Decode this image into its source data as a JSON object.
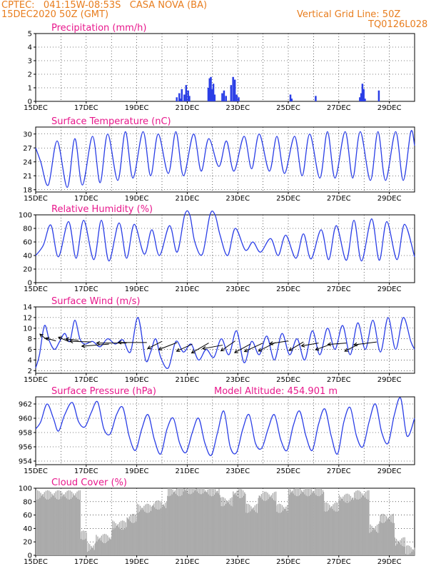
{
  "header": {
    "line1": "CPTEC:   041:15W-08:53S   CASA NOVA (BA)",
    "line2": "15DEC2020 50Z (GMT)",
    "right1": "Vertical Grid Line: 50Z",
    "right2": "TQ0126L028"
  },
  "colors": {
    "series": "#2a3ee6",
    "cloud": "#ababab",
    "title": "#e8188c",
    "header": "#e87d1e"
  },
  "chart_data": [
    {
      "type": "bar",
      "title": "Precipitation (mm/h)",
      "x_ticks": [
        "15DEC",
        "17DEC",
        "19DEC",
        "21DEC",
        "23DEC",
        "25DEC",
        "27DEC",
        "29DEC"
      ],
      "ylim": [
        0,
        5
      ],
      "yticks": [
        0,
        1,
        2,
        3,
        4,
        5
      ],
      "series": [
        {
          "values_by_day": [
            {
              "day": 20.55,
              "v": 0.3
            },
            {
              "day": 20.65,
              "v": 0.6
            },
            {
              "day": 20.75,
              "v": 0.9
            },
            {
              "day": 20.85,
              "v": 0.5
            },
            {
              "day": 20.92,
              "v": 1.2
            },
            {
              "day": 21.0,
              "v": 0.8
            },
            {
              "day": 20.7,
              "v": 0.2
            },
            {
              "day": 21.05,
              "v": 0.4
            },
            {
              "day": 21.8,
              "v": 1.0
            },
            {
              "day": 21.85,
              "v": 1.7
            },
            {
              "day": 21.9,
              "v": 1.8
            },
            {
              "day": 21.95,
              "v": 0.9
            },
            {
              "day": 22.0,
              "v": 1.3
            },
            {
              "day": 22.05,
              "v": 0.5
            },
            {
              "day": 22.35,
              "v": 0.6
            },
            {
              "day": 22.42,
              "v": 0.8
            },
            {
              "day": 22.5,
              "v": 0.4
            },
            {
              "day": 22.7,
              "v": 1.2
            },
            {
              "day": 22.78,
              "v": 1.8
            },
            {
              "day": 22.85,
              "v": 1.6
            },
            {
              "day": 22.92,
              "v": 0.5
            },
            {
              "day": 23.0,
              "v": 0.3
            },
            {
              "day": 25.05,
              "v": 0.5
            },
            {
              "day": 25.1,
              "v": 0.2
            },
            {
              "day": 26.05,
              "v": 0.4
            },
            {
              "day": 27.8,
              "v": 0.3
            },
            {
              "day": 27.85,
              "v": 0.6
            },
            {
              "day": 27.9,
              "v": 1.3
            },
            {
              "day": 27.95,
              "v": 0.9
            },
            {
              "day": 28.0,
              "v": 0.2
            },
            {
              "day": 28.55,
              "v": 0.8
            }
          ]
        }
      ]
    },
    {
      "type": "line",
      "title": "Surface Temperature (nC)",
      "x_ticks": [
        "15DEC",
        "17DEC",
        "19DEC",
        "21DEC",
        "23DEC",
        "25DEC",
        "27DEC",
        "29DEC"
      ],
      "ylim": [
        17.5,
        31.5
      ],
      "yticks": [
        18,
        21,
        24,
        27,
        30
      ],
      "series": [
        {
          "day": [
            15,
            15.2,
            15.5,
            15.85,
            16.25,
            16.55,
            16.85,
            17.25,
            17.55,
            17.85,
            18.25,
            18.55,
            18.85,
            19.25,
            19.55,
            19.85,
            20.25,
            20.55,
            20.85,
            21.25,
            21.55,
            21.85,
            22.25,
            22.55,
            22.85,
            23.25,
            23.55,
            23.85,
            24.25,
            24.55,
            24.85,
            25.25,
            25.55,
            25.85,
            26.25,
            26.55,
            26.85,
            27.25,
            27.55,
            27.85,
            28.25,
            28.55,
            28.85,
            29.25,
            29.55,
            29.85,
            30
          ],
          "values": [
            27,
            24,
            19,
            28.5,
            18.5,
            29,
            19,
            29.5,
            19.5,
            30,
            20,
            30.5,
            20.5,
            30.5,
            21,
            30,
            21.5,
            30.5,
            21,
            30,
            22,
            29,
            23,
            28.5,
            22,
            29.5,
            22.5,
            30,
            22,
            29.5,
            21.5,
            29.5,
            21,
            30,
            20.5,
            30.5,
            20.5,
            30.5,
            20.5,
            30.5,
            20,
            30.5,
            20,
            30.5,
            20,
            30.5,
            27.5
          ]
        }
      ]
    },
    {
      "type": "line",
      "title": "Relative Humidity (%)",
      "x_ticks": [
        "15DEC",
        "17DEC",
        "19DEC",
        "21DEC",
        "23DEC",
        "25DEC",
        "27DEC",
        "29DEC"
      ],
      "ylim": [
        0,
        100
      ],
      "yticks": [
        0,
        20,
        40,
        60,
        80,
        100
      ],
      "series": [
        {
          "day": [
            15,
            15.3,
            15.6,
            15.9,
            16.3,
            16.6,
            16.9,
            17.3,
            17.6,
            17.9,
            18.3,
            18.6,
            18.9,
            19.3,
            19.6,
            19.9,
            20.3,
            20.6,
            20.9,
            21.1,
            21.3,
            21.6,
            21.9,
            22.1,
            22.3,
            22.6,
            22.9,
            23.3,
            23.6,
            23.9,
            24.3,
            24.6,
            24.9,
            25.3,
            25.6,
            25.9,
            26.3,
            26.6,
            26.9,
            27.3,
            27.6,
            27.9,
            28.3,
            28.6,
            28.9,
            29.3,
            29.6,
            30
          ],
          "values": [
            40,
            55,
            85,
            38,
            90,
            36,
            92,
            34,
            92,
            32,
            88,
            36,
            86,
            42,
            78,
            40,
            84,
            45,
            100,
            100,
            60,
            42,
            100,
            100,
            70,
            40,
            80,
            48,
            60,
            45,
            65,
            40,
            70,
            36,
            72,
            35,
            78,
            34,
            84,
            33,
            92,
            32,
            94,
            33,
            90,
            34,
            86,
            38
          ]
        }
      ]
    },
    {
      "type": "line",
      "title": "Surface Wind (m/s)",
      "x_ticks": [
        "15DEC",
        "17DEC",
        "19DEC",
        "21DEC",
        "23DEC",
        "25DEC",
        "27DEC",
        "29DEC"
      ],
      "ylim": [
        1.5,
        14
      ],
      "yticks": [
        2,
        4,
        6,
        8,
        10,
        12,
        14
      ],
      "series": [
        {
          "day": [
            15,
            15.15,
            15.35,
            15.55,
            15.75,
            15.95,
            16.15,
            16.35,
            16.55,
            16.75,
            16.95,
            17.25,
            17.55,
            17.85,
            18.15,
            18.45,
            18.75,
            19.05,
            19.35,
            19.55,
            19.75,
            19.95,
            20.25,
            20.55,
            20.85,
            21.15,
            21.45,
            21.75,
            22.05,
            22.35,
            22.65,
            22.95,
            23.25,
            23.55,
            23.85,
            24.15,
            24.45,
            24.75,
            25.05,
            25.35,
            25.65,
            25.95,
            26.25,
            26.55,
            26.85,
            27.15,
            27.45,
            27.75,
            28.05,
            28.35,
            28.65,
            28.95,
            29.25,
            29.55,
            29.85,
            30
          ],
          "values": [
            2.5,
            5,
            10.5,
            7.5,
            6,
            7.5,
            9,
            7.5,
            11.5,
            8,
            7,
            7.5,
            6.5,
            8,
            7,
            7.8,
            5.5,
            12,
            4,
            5.5,
            8,
            4.5,
            2.5,
            7.5,
            5.5,
            7,
            4,
            6,
            4.5,
            8,
            5,
            9.5,
            3.5,
            7.5,
            5,
            8.5,
            4,
            9,
            5,
            8,
            4,
            9.5,
            5,
            10,
            6,
            10.5,
            5,
            11,
            6,
            11.5,
            5.5,
            12,
            6,
            12,
            7.5,
            6
          ]
        }
      ],
      "arrows": [
        {
          "day": 15.45,
          "v": 7.8,
          "dx": -10,
          "dy": -8
        },
        {
          "day": 15.8,
          "v": 7.6,
          "dx": -14,
          "dy": -4
        },
        {
          "day": 16.3,
          "v": 7.5,
          "dx": -14,
          "dy": -6
        },
        {
          "day": 16.7,
          "v": 7.7,
          "dx": -18,
          "dy": -2
        },
        {
          "day": 17.2,
          "v": 7.4,
          "dx": -30,
          "dy": -1
        },
        {
          "day": 17.9,
          "v": 7.0,
          "dx": -38,
          "dy": 3
        },
        {
          "day": 18.6,
          "v": 7.2,
          "dx": -42,
          "dy": 0
        },
        {
          "day": 19.4,
          "v": 7.3,
          "dx": -40,
          "dy": 0
        },
        {
          "day": 20.0,
          "v": 7.5,
          "dx": -20,
          "dy": 10
        },
        {
          "day": 20.6,
          "v": 7.3,
          "dx": -26,
          "dy": 10
        },
        {
          "day": 21.2,
          "v": 7.0,
          "dx": -22,
          "dy": 10
        },
        {
          "day": 21.85,
          "v": 7.2,
          "dx": -24,
          "dy": 14
        },
        {
          "day": 22.4,
          "v": 6.8,
          "dx": -28,
          "dy": 5
        },
        {
          "day": 22.9,
          "v": 7.6,
          "dx": -20,
          "dy": 14
        },
        {
          "day": 23.5,
          "v": 7.0,
          "dx": -22,
          "dy": 12
        },
        {
          "day": 24.0,
          "v": 7.2,
          "dx": -26,
          "dy": 12
        },
        {
          "day": 24.5,
          "v": 7.3,
          "dx": -24,
          "dy": 12
        },
        {
          "day": 25.0,
          "v": 7.6,
          "dx": -26,
          "dy": 4
        },
        {
          "day": 25.6,
          "v": 7.4,
          "dx": -20,
          "dy": 12
        },
        {
          "day": 26.2,
          "v": 7.2,
          "dx": -24,
          "dy": 4
        },
        {
          "day": 26.7,
          "v": 7.0,
          "dx": -22,
          "dy": 8
        },
        {
          "day": 27.3,
          "v": 7.2,
          "dx": -26,
          "dy": 2
        },
        {
          "day": 27.8,
          "v": 7.0,
          "dx": -20,
          "dy": 10
        },
        {
          "day": 28.5,
          "v": 7.4,
          "dx": -32,
          "dy": 4
        }
      ]
    },
    {
      "type": "line",
      "title": "Surface Pressure (hPa)",
      "annotation": "Model Altitude: 454.901  m",
      "x_ticks": [
        "15DEC",
        "17DEC",
        "19DEC",
        "21DEC",
        "23DEC",
        "25DEC",
        "27DEC",
        "29DEC"
      ],
      "ylim": [
        953.5,
        963
      ],
      "yticks": [
        954,
        956,
        958,
        960,
        962
      ],
      "series": [
        {
          "day": [
            15,
            15.2,
            15.45,
            15.7,
            15.9,
            16.15,
            16.45,
            16.7,
            16.95,
            17.2,
            17.45,
            17.7,
            17.95,
            18.2,
            18.45,
            18.7,
            18.95,
            19.2,
            19.45,
            19.7,
            19.95,
            20.2,
            20.45,
            20.7,
            20.95,
            21.2,
            21.45,
            21.7,
            21.95,
            22.2,
            22.45,
            22.7,
            22.95,
            23.2,
            23.45,
            23.7,
            23.95,
            24.2,
            24.45,
            24.7,
            24.95,
            25.2,
            25.45,
            25.7,
            25.95,
            26.2,
            26.45,
            26.7,
            26.95,
            27.2,
            27.45,
            27.7,
            27.95,
            28.2,
            28.45,
            28.7,
            28.95,
            29.2,
            29.45,
            29.7,
            30
          ],
          "values": [
            958.5,
            959.5,
            962,
            960,
            958.2,
            960.5,
            962.2,
            959.5,
            958.8,
            960.8,
            962.3,
            958.5,
            957.8,
            960.5,
            961.5,
            957.5,
            955.5,
            958.5,
            960.5,
            957,
            955,
            958.5,
            960,
            956.5,
            955.2,
            958,
            960,
            956.5,
            954.8,
            958,
            961,
            956,
            955.2,
            958.5,
            960.5,
            956.5,
            955.8,
            958.5,
            960.5,
            957,
            955.5,
            959,
            961,
            957.5,
            955.5,
            959.2,
            961.3,
            957.5,
            955,
            959.5,
            961.5,
            957.5,
            956,
            959.5,
            962,
            958,
            956.5,
            960.5,
            962.8,
            957.5,
            960
          ]
        }
      ]
    },
    {
      "type": "bar",
      "title": "Cloud Cover (%)",
      "x_ticks": [
        "15DEC",
        "17DEC",
        "19DEC",
        "21DEC",
        "23DEC",
        "25DEC",
        "27DEC",
        "29DEC"
      ],
      "ylim": [
        0,
        100
      ],
      "yticks": [
        0,
        20,
        40,
        60,
        80,
        100
      ],
      "series": [
        {
          "segments": [
            {
              "from": 15.0,
              "to": 16.75,
              "v": 90
            },
            {
              "from": 16.75,
              "to": 17.0,
              "v": 30
            },
            {
              "from": 17.0,
              "to": 17.35,
              "v": 12
            },
            {
              "from": 17.35,
              "to": 18.0,
              "v": 25
            },
            {
              "from": 18.0,
              "to": 18.6,
              "v": 45
            },
            {
              "from": 18.6,
              "to": 19.0,
              "v": 55
            },
            {
              "from": 19.0,
              "to": 19.6,
              "v": 70
            },
            {
              "from": 19.6,
              "to": 20.2,
              "v": 75
            },
            {
              "from": 20.2,
              "to": 20.8,
              "v": 95
            },
            {
              "from": 20.8,
              "to": 21.7,
              "v": 98
            },
            {
              "from": 21.7,
              "to": 22.3,
              "v": 95
            },
            {
              "from": 22.3,
              "to": 22.8,
              "v": 80
            },
            {
              "from": 22.8,
              "to": 23.3,
              "v": 92
            },
            {
              "from": 23.3,
              "to": 23.8,
              "v": 70
            },
            {
              "from": 23.8,
              "to": 24.5,
              "v": 88
            },
            {
              "from": 24.5,
              "to": 25.0,
              "v": 70
            },
            {
              "from": 25.0,
              "to": 26.4,
              "v": 95
            },
            {
              "from": 26.4,
              "to": 27.0,
              "v": 72
            },
            {
              "from": 27.0,
              "to": 27.6,
              "v": 85
            },
            {
              "from": 27.6,
              "to": 28.2,
              "v": 90
            },
            {
              "from": 28.2,
              "to": 28.6,
              "v": 40
            },
            {
              "from": 28.6,
              "to": 29.2,
              "v": 55
            },
            {
              "from": 29.2,
              "to": 29.6,
              "v": 20
            },
            {
              "from": 29.6,
              "to": 30.0,
              "v": 8
            }
          ]
        }
      ]
    }
  ]
}
